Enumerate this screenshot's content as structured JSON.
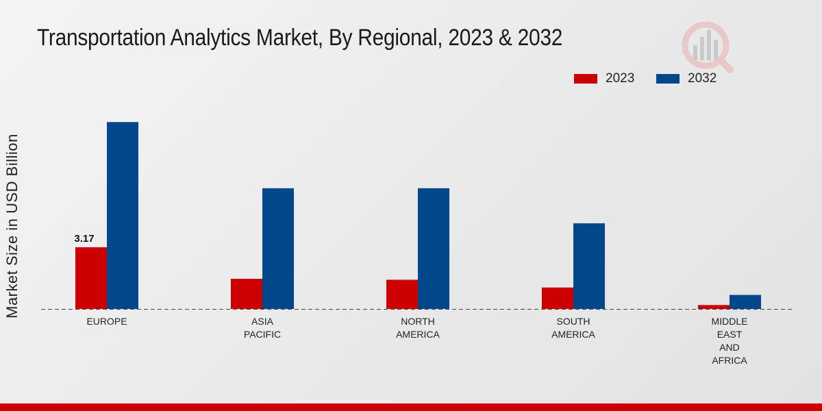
{
  "chart_data": {
    "type": "bar",
    "title": "Transportation Analytics Market, By Regional, 2023 & 2032",
    "xlabel": "",
    "ylabel": "Market Size in USD Billion",
    "categories": [
      "EUROPE",
      "ASIA\nPACIFIC",
      "NORTH\nAMERICA",
      "SOUTH\nAMERICA",
      "MIDDLE\nEAST\nAND\nAFRICA"
    ],
    "series": [
      {
        "name": "2023",
        "color": "#cc0000",
        "values": [
          3.17,
          1.55,
          1.5,
          1.1,
          0.2
        ]
      },
      {
        "name": "2032",
        "color": "#00488b",
        "values": [
          9.6,
          6.2,
          6.2,
          4.4,
          0.72
        ]
      }
    ],
    "data_labels": [
      {
        "series": "2023",
        "category_index": 0,
        "text": "3.17"
      }
    ],
    "ylim": [
      0,
      12
    ],
    "grid": false,
    "legend": "top-right",
    "baseline": "dashed"
  }
}
